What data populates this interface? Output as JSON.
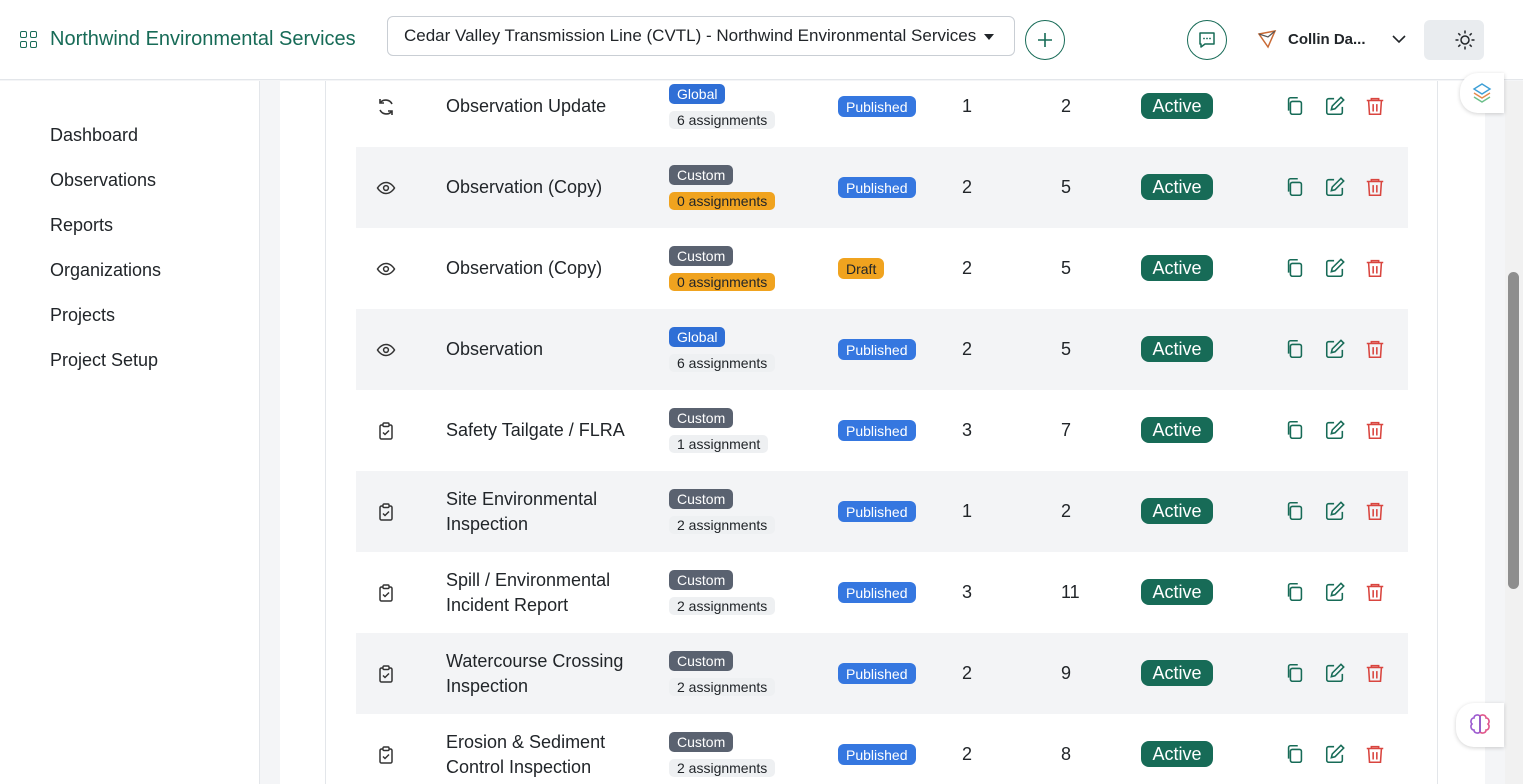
{
  "header": {
    "brand": "Northwind Environmental Services",
    "project_select": "Cedar Valley Transmission Line (CVTL) - Northwind Environmental Services",
    "user_name": "Collin Da..."
  },
  "sidebar": {
    "items": [
      {
        "label": "Dashboard"
      },
      {
        "label": "Observations"
      },
      {
        "label": "Reports"
      },
      {
        "label": "Organizations"
      },
      {
        "label": "Projects"
      },
      {
        "label": "Project Setup"
      }
    ]
  },
  "colors": {
    "brand": "#176b57",
    "global_badge": "#2f6fd6",
    "custom_badge": "#5a6270",
    "published_badge": "#3577e0",
    "draft_badge": "#f0a31f",
    "active_badge": "#176b57",
    "delete": "#d9453f"
  },
  "table": {
    "rows": [
      {
        "icon": "refresh-icon",
        "name": "Observation Update",
        "scope": "Global",
        "assignments": "6 assignments",
        "status": "Published",
        "col1": "1",
        "col2": "2",
        "state": "Active"
      },
      {
        "icon": "eye-icon",
        "name": "Observation (Copy)",
        "scope": "Custom",
        "assignments": "0 assignments",
        "status": "Published",
        "col1": "2",
        "col2": "5",
        "state": "Active"
      },
      {
        "icon": "eye-icon",
        "name": "Observation (Copy)",
        "scope": "Custom",
        "assignments": "0 assignments",
        "status": "Draft",
        "col1": "2",
        "col2": "5",
        "state": "Active"
      },
      {
        "icon": "eye-icon",
        "name": "Observation",
        "scope": "Global",
        "assignments": "6 assignments",
        "status": "Published",
        "col1": "2",
        "col2": "5",
        "state": "Active"
      },
      {
        "icon": "clipboard-check-icon",
        "name": "Safety Tailgate / FLRA",
        "scope": "Custom",
        "assignments": "1 assignment",
        "status": "Published",
        "col1": "3",
        "col2": "7",
        "state": "Active"
      },
      {
        "icon": "clipboard-check-icon",
        "name": "Site Environmental Inspection",
        "scope": "Custom",
        "assignments": "2 assignments",
        "status": "Published",
        "col1": "1",
        "col2": "2",
        "state": "Active"
      },
      {
        "icon": "clipboard-check-icon",
        "name": "Spill / Environmental Incident Report",
        "scope": "Custom",
        "assignments": "2 assignments",
        "status": "Published",
        "col1": "3",
        "col2": "11",
        "state": "Active"
      },
      {
        "icon": "clipboard-check-icon",
        "name": "Watercourse Crossing Inspection",
        "scope": "Custom",
        "assignments": "2 assignments",
        "status": "Published",
        "col1": "2",
        "col2": "9",
        "state": "Active"
      },
      {
        "icon": "clipboard-check-icon",
        "name": "Erosion & Sediment Control Inspection",
        "scope": "Custom",
        "assignments": "2 assignments",
        "status": "Published",
        "col1": "2",
        "col2": "8",
        "state": "Active"
      }
    ]
  }
}
